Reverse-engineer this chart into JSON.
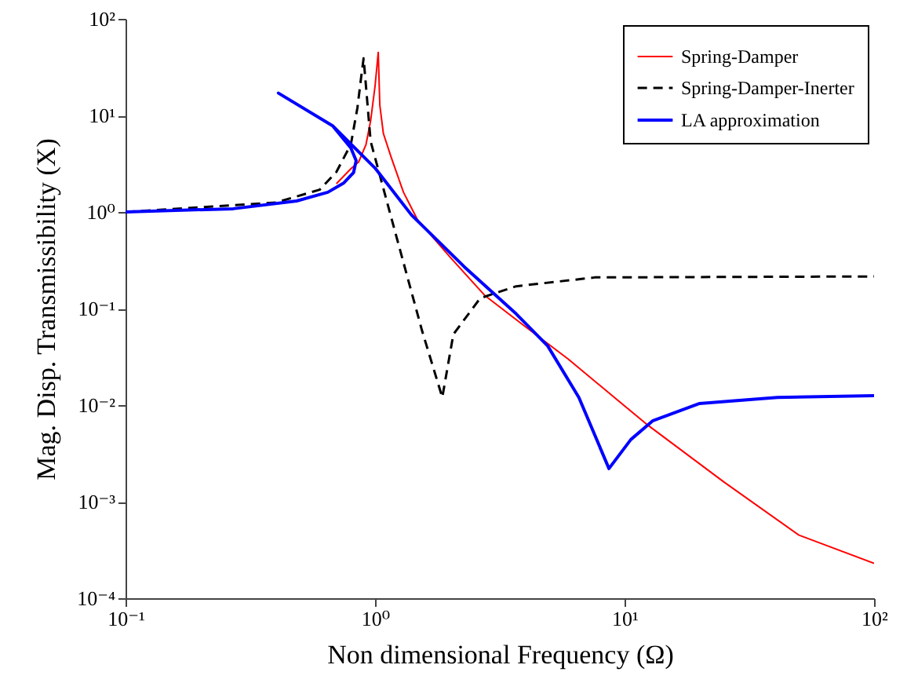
{
  "chart_data": {
    "type": "line",
    "xlabel": "Non dimensional Frequency (Ω)",
    "ylabel": "Mag. Disp. Transmissibility (X)",
    "log": "xy",
    "grid": false,
    "legend": "top right",
    "marker": "none",
    "xlim": [
      0.1,
      100
    ],
    "ylim": [
      0.0001,
      100
    ],
    "xticks": [
      {
        "value": 0.1,
        "label": "10⁻¹"
      },
      {
        "value": 1,
        "label": "10⁰"
      },
      {
        "value": 10,
        "label": "10¹"
      },
      {
        "value": 100,
        "label": "10²"
      }
    ],
    "yticks": [
      {
        "value": 0.0001,
        "label": "10⁻⁴"
      },
      {
        "value": 0.001,
        "label": "10⁻³"
      },
      {
        "value": 0.01,
        "label": "10⁻²"
      },
      {
        "value": 0.1,
        "label": "10⁻¹"
      },
      {
        "value": 1,
        "label": "10⁰"
      },
      {
        "value": 10,
        "label": "10¹"
      },
      {
        "value": 100,
        "label": "10²"
      }
    ],
    "series": [
      {
        "name": "Spring-Damper",
        "color": "#ff0000",
        "line_style": "solid",
        "x": [
          0.7,
          0.8,
          0.86,
          0.92,
          0.96,
          1.0,
          1.03,
          1.045,
          1.08,
          1.16,
          1.3,
          1.48,
          2.0,
          2.75,
          4,
          5.94,
          12.2,
          25,
          50,
          100
        ],
        "values": [
          1.96,
          2.8,
          3.3,
          5,
          8.8,
          20,
          45,
          12.8,
          6.5,
          3.7,
          1.6,
          0.83,
          0.34,
          0.137,
          0.065,
          0.03,
          0.0064,
          0.0016,
          0.00045,
          0.00023
        ]
      },
      {
        "name": "Spring-Damper-Inerter",
        "color": "#000000",
        "line_style": "dashed",
        "x": [
          0.1,
          0.4,
          0.6,
          0.7,
          0.8,
          0.85,
          0.88,
          0.9,
          0.96,
          1.2,
          1.54,
          1.86,
          2.06,
          2.64,
          3.68,
          7.6,
          100
        ],
        "values": [
          1,
          1.25,
          1.7,
          2.6,
          5,
          12,
          25,
          39,
          5.4,
          0.64,
          0.06,
          0.012,
          0.054,
          0.128,
          0.17,
          0.21,
          0.215
        ]
      },
      {
        "name": "LA approximation",
        "color": "#0000ff",
        "line_style": "solid",
        "x": [
          0.1,
          0.27,
          0.485,
          0.647,
          0.75,
          0.82,
          0.84,
          0.8,
          0.676,
          0.41,
          0.676,
          1.0,
          1.4,
          2.28,
          3.68,
          4.92,
          6.56,
          8.66,
          10.6,
          13,
          20,
          41,
          100
        ],
        "values": [
          1,
          1.08,
          1.3,
          1.6,
          2.0,
          2.55,
          3.4,
          4.6,
          7.8,
          17,
          7.8,
          2.85,
          0.93,
          0.27,
          0.088,
          0.041,
          0.012,
          0.0022,
          0.0044,
          0.0069,
          0.0104,
          0.012,
          0.0125
        ]
      }
    ]
  }
}
